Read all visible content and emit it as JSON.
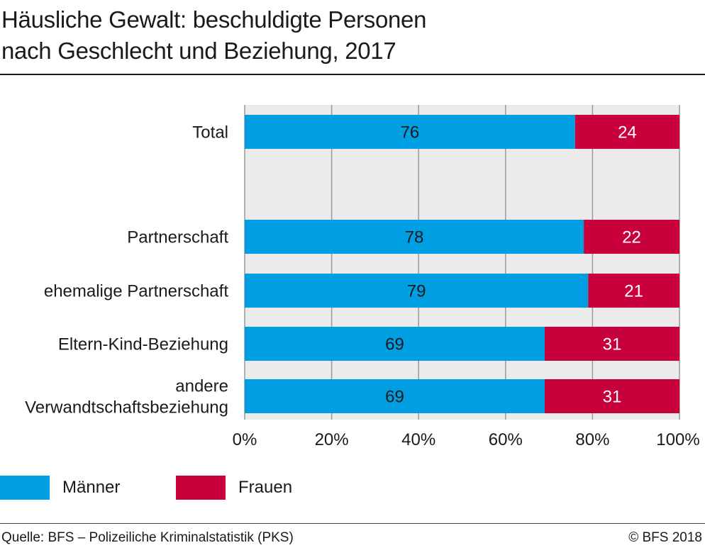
{
  "title_lines": [
    "Häusliche Gewalt: beschuldigte Personen",
    "nach Geschlecht und Beziehung, 2017"
  ],
  "chart_data": {
    "type": "bar",
    "orientation": "horizontal",
    "stacked": true,
    "title": "Häusliche Gewalt: beschuldigte Personen nach Geschlecht und Beziehung, 2017",
    "categories": [
      [
        "Total"
      ],
      [
        "Partnerschaft"
      ],
      [
        "ehemalige Partnerschaft"
      ],
      [
        "Eltern-Kind-Beziehung"
      ],
      [
        "andere",
        "Verwandtschaftsbeziehung"
      ]
    ],
    "category_names": [
      "Total",
      "Partnerschaft",
      "ehemalige Partnerschaft",
      "Eltern-Kind-Beziehung",
      "andere Verwandtschaftsbeziehung"
    ],
    "series": [
      {
        "name": "Männer",
        "color": "#009fe3",
        "values": [
          76,
          78,
          79,
          69,
          69
        ]
      },
      {
        "name": "Frauen",
        "color": "#c8003c",
        "values": [
          24,
          22,
          21,
          31,
          31
        ]
      }
    ],
    "xlim": [
      0,
      100
    ],
    "xticks": [
      "0%",
      "20%",
      "40%",
      "60%",
      "80%",
      "100%"
    ],
    "grid": true,
    "legend_position": "bottom-left"
  },
  "legend": [
    {
      "label": "Männer",
      "color": "#009fe3"
    },
    {
      "label": "Frauen",
      "color": "#c8003c"
    }
  ],
  "footer": {
    "source": "Quelle: BFS – Polizeiliche Kriminalstatistik (PKS)",
    "copyright": "© BFS 2018"
  }
}
